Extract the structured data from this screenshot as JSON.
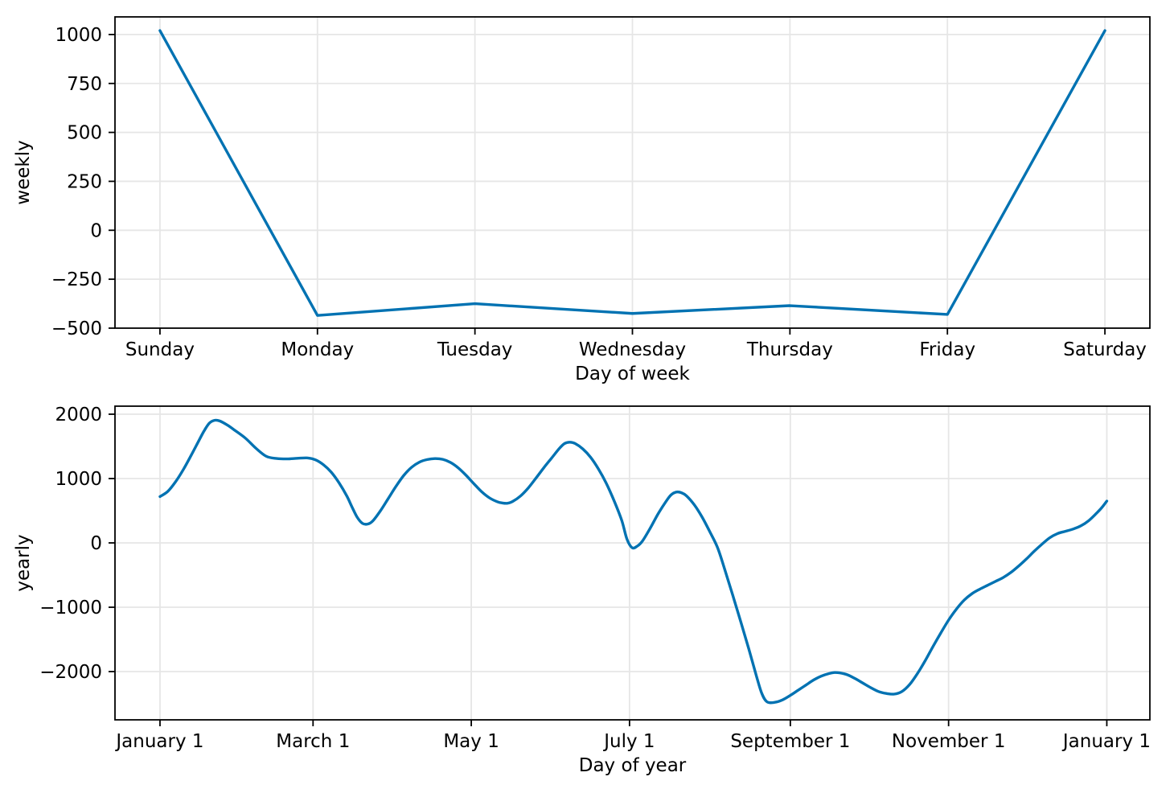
{
  "figure": {
    "background": "#ffffff",
    "line_color": "#0072B2",
    "grid_color": "#e6e6e6",
    "axis_color": "#000000",
    "text_color": "#000000"
  },
  "chart_data": [
    {
      "type": "line",
      "title": "",
      "xlabel": "Day of week",
      "ylabel": "weekly",
      "grid": true,
      "legend": null,
      "xlim": [
        -0.2855,
        6.2855
      ],
      "ylim": [
        -500,
        1090
      ],
      "x_tick_pos": [
        0,
        1,
        2,
        3,
        4,
        5,
        6
      ],
      "x_tick_labels": [
        "Sunday",
        "Monday",
        "Tuesday",
        "Wednesday",
        "Thursday",
        "Friday",
        "Saturday"
      ],
      "y_tick_values": [
        1000,
        750,
        500,
        250,
        0,
        -250,
        -500
      ],
      "y_tick_labels": [
        "1000",
        "750",
        "500",
        "250",
        "0",
        "−250",
        "−500"
      ],
      "categories": [
        "Sunday",
        "Monday",
        "Tuesday",
        "Wednesday",
        "Thursday",
        "Friday",
        "Saturday"
      ],
      "series": [
        {
          "name": "weekly",
          "color": "#0072B2",
          "smooth": false,
          "points": [
            [
              0,
              1020
            ],
            [
              1,
              -435
            ],
            [
              2,
              -375
            ],
            [
              3,
              -425
            ],
            [
              4,
              -385
            ],
            [
              5,
              -430
            ],
            [
              6,
              1020
            ]
          ]
        }
      ]
    },
    {
      "type": "line",
      "title": "",
      "xlabel": "Day of year",
      "ylabel": "yearly",
      "grid": true,
      "legend": null,
      "xlim": [
        -17.35,
        381.6
      ],
      "ylim": [
        -2750,
        2125
      ],
      "x_tick_pos": [
        0,
        59,
        120,
        181,
        243,
        304,
        365
      ],
      "x_tick_labels": [
        "January 1",
        "March 1",
        "May 1",
        "July 1",
        "September 1",
        "November 1",
        "January 1"
      ],
      "y_tick_values": [
        2000,
        1000,
        0,
        -1000,
        -2000
      ],
      "y_tick_labels": [
        "2000",
        "1000",
        "0",
        "−1000",
        "−2000"
      ],
      "series": [
        {
          "name": "yearly",
          "color": "#0072B2",
          "smooth": true,
          "points": [
            [
              0,
              720
            ],
            [
              3,
              800
            ],
            [
              6,
              950
            ],
            [
              9,
              1140
            ],
            [
              12,
              1360
            ],
            [
              15,
              1590
            ],
            [
              17,
              1740
            ],
            [
              19,
              1860
            ],
            [
              21,
              1905
            ],
            [
              23,
              1895
            ],
            [
              26,
              1830
            ],
            [
              29,
              1745
            ],
            [
              33,
              1625
            ],
            [
              37,
              1470
            ],
            [
              41,
              1345
            ],
            [
              45,
              1312
            ],
            [
              49,
              1305
            ],
            [
              53,
              1315
            ],
            [
              57,
              1320
            ],
            [
              60,
              1290
            ],
            [
              63,
              1215
            ],
            [
              66,
              1100
            ],
            [
              69,
              935
            ],
            [
              72,
              730
            ],
            [
              74,
              560
            ],
            [
              76,
              400
            ],
            [
              78,
              305
            ],
            [
              80,
              292
            ],
            [
              82,
              340
            ],
            [
              85,
              500
            ],
            [
              88,
              690
            ],
            [
              91,
              880
            ],
            [
              94,
              1050
            ],
            [
              97,
              1175
            ],
            [
              100,
              1255
            ],
            [
              103,
              1295
            ],
            [
              106,
              1310
            ],
            [
              109,
              1298
            ],
            [
              112,
              1250
            ],
            [
              115,
              1165
            ],
            [
              118,
              1050
            ],
            [
              121,
              920
            ],
            [
              124,
              795
            ],
            [
              127,
              700
            ],
            [
              130,
              640
            ],
            [
              132,
              620
            ],
            [
              134,
              616
            ],
            [
              136,
              645
            ],
            [
              139,
              730
            ],
            [
              142,
              855
            ],
            [
              145,
              1010
            ],
            [
              148,
              1170
            ],
            [
              151,
              1320
            ],
            [
              154,
              1470
            ],
            [
              156,
              1545
            ],
            [
              158,
              1565
            ],
            [
              160,
              1545
            ],
            [
              163,
              1460
            ],
            [
              166,
              1330
            ],
            [
              169,
              1150
            ],
            [
              172,
              930
            ],
            [
              175,
              660
            ],
            [
              178,
              350
            ],
            [
              180,
              60
            ],
            [
              182,
              -75
            ],
            [
              184,
              -50
            ],
            [
              186,
              30
            ],
            [
              189,
              230
            ],
            [
              192,
              450
            ],
            [
              195,
              640
            ],
            [
              197,
              745
            ],
            [
              199,
              790
            ],
            [
              201,
              780
            ],
            [
              203,
              730
            ],
            [
              206,
              590
            ],
            [
              209,
              400
            ],
            [
              212,
              170
            ],
            [
              215,
              -80
            ],
            [
              218,
              -450
            ],
            [
              221,
              -840
            ],
            [
              224,
              -1240
            ],
            [
              227,
              -1650
            ],
            [
              230,
              -2080
            ],
            [
              232,
              -2340
            ],
            [
              234,
              -2470
            ],
            [
              237,
              -2478
            ],
            [
              240,
              -2440
            ],
            [
              243,
              -2370
            ],
            [
              246,
              -2290
            ],
            [
              249,
              -2210
            ],
            [
              252,
              -2130
            ],
            [
              255,
              -2070
            ],
            [
              258,
              -2030
            ],
            [
              260,
              -2015
            ],
            [
              262,
              -2020
            ],
            [
              265,
              -2050
            ],
            [
              268,
              -2110
            ],
            [
              271,
              -2180
            ],
            [
              274,
              -2250
            ],
            [
              277,
              -2310
            ],
            [
              280,
              -2340
            ],
            [
              283,
              -2350
            ],
            [
              286,
              -2310
            ],
            [
              289,
              -2200
            ],
            [
              292,
              -2030
            ],
            [
              295,
              -1830
            ],
            [
              298,
              -1610
            ],
            [
              301,
              -1400
            ],
            [
              304,
              -1200
            ],
            [
              307,
              -1030
            ],
            [
              310,
              -890
            ],
            [
              313,
              -790
            ],
            [
              316,
              -720
            ],
            [
              319,
              -660
            ],
            [
              322,
              -600
            ],
            [
              325,
              -540
            ],
            [
              328,
              -460
            ],
            [
              331,
              -360
            ],
            [
              334,
              -250
            ],
            [
              337,
              -130
            ],
            [
              340,
              -20
            ],
            [
              343,
              80
            ],
            [
              346,
              145
            ],
            [
              349,
              180
            ],
            [
              352,
              215
            ],
            [
              355,
              265
            ],
            [
              358,
              345
            ],
            [
              361,
              460
            ],
            [
              363,
              545
            ],
            [
              365,
              650
            ]
          ]
        }
      ]
    }
  ]
}
